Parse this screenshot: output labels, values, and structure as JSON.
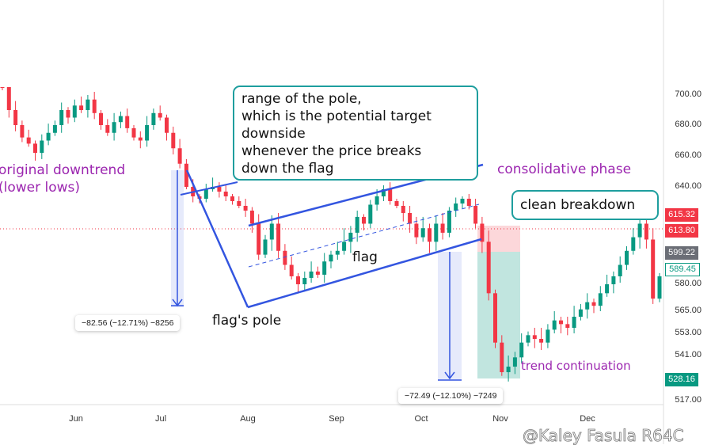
{
  "chart_data": {
    "type": "candlestick",
    "y_ticks": [
      700,
      680,
      660,
      640,
      580,
      565,
      553,
      541,
      517
    ],
    "x_ticks": [
      "Jun",
      "Jul",
      "Aug",
      "Sep",
      "Oct",
      "Nov",
      "Dec"
    ],
    "closes": [
      705,
      690,
      680,
      672,
      668,
      662,
      670,
      675,
      680,
      690,
      685,
      693,
      690,
      697,
      688,
      680,
      675,
      682,
      686,
      678,
      672,
      670,
      680,
      688,
      685,
      675,
      665,
      655,
      640,
      632,
      630,
      638,
      640,
      636,
      632,
      628,
      624,
      620,
      612,
      598,
      605,
      612,
      600,
      592,
      585,
      580,
      584,
      588,
      586,
      594,
      598,
      600,
      604,
      608,
      615,
      612,
      625,
      632,
      638,
      628,
      624,
      618,
      612,
      606,
      610,
      604,
      612,
      608,
      620,
      626,
      630,
      624,
      612,
      604,
      575,
      548,
      532,
      535,
      540,
      548,
      552,
      550,
      548,
      555,
      560,
      558,
      556,
      562,
      566,
      570,
      568,
      575,
      580,
      585,
      592,
      600,
      606,
      612,
      605,
      572,
      585
    ],
    "price_badges": [
      {
        "value": "615.32",
        "color": "#f23645"
      },
      {
        "value": "613.80",
        "color": "#f23645"
      },
      {
        "value": "599.22",
        "color": "#6b6e76"
      },
      {
        "value": "589.45",
        "color": "#ffffff"
      },
      {
        "value": "528.16",
        "color": "#089981"
      }
    ],
    "colors": {
      "up": "#089981",
      "down": "#f23645",
      "drawing": "#3355e0",
      "annotation": "#9c27b0",
      "box_border": "#1e9e9e"
    }
  },
  "annotations": {
    "original_downtrend": "original downtrend",
    "lower_lows": "(lower lows)",
    "consolidative_phase": "consolidative phase",
    "range_box": [
      "range of the pole,",
      "which is the potential target",
      "downside",
      "whenever the price breaks",
      "down the flag"
    ],
    "clean_breakdown": "clean breakdown",
    "flag": "flag",
    "flags_pole": "flag's pole",
    "trend_continuation": "trend continuation",
    "measure1": "−82.56 (−12.71%) −8256",
    "measure2": "−72.49 (−12.10%) −7249"
  },
  "watermark": "@Kaley Fasula R64C"
}
